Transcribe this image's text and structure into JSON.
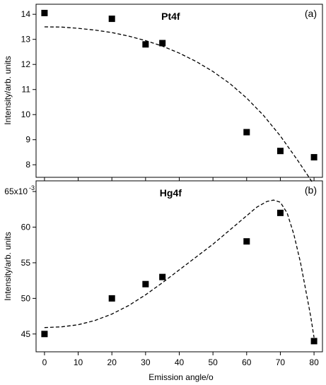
{
  "chart_data": [
    {
      "type": "scatter",
      "title": "Pt4f",
      "panel_label": "(a)",
      "xlabel": "",
      "ylabel": "Intensity/arb. units",
      "xlim": [
        -2.5,
        82.5
      ],
      "ylim": [
        7.5,
        14.4
      ],
      "yticks": [
        8,
        9,
        10,
        11,
        12,
        13,
        14
      ],
      "ytick_labels": [
        "8",
        "9",
        "10",
        "11",
        "12",
        "13",
        "14"
      ],
      "xticks": [
        0,
        10,
        20,
        30,
        40,
        50,
        60,
        70,
        80
      ],
      "show_x_tick_labels": false,
      "grid": false,
      "series": [
        {
          "kind": "points",
          "marker": "square",
          "x": [
            0,
            20,
            30,
            35,
            60,
            70,
            80
          ],
          "y": [
            14.05,
            13.82,
            12.8,
            12.85,
            9.3,
            8.55,
            8.3
          ]
        },
        {
          "kind": "line",
          "style": "dashed",
          "x": [
            0,
            5,
            10,
            15,
            20,
            25,
            30,
            35,
            40,
            45,
            50,
            55,
            60,
            65,
            70,
            75,
            78,
            79.5
          ],
          "y": [
            13.5,
            13.49,
            13.44,
            13.37,
            13.27,
            13.13,
            12.95,
            12.73,
            12.45,
            12.12,
            11.72,
            11.24,
            10.66,
            9.97,
            9.15,
            8.2,
            7.6,
            7.3
          ]
        }
      ]
    },
    {
      "type": "scatter",
      "title": "Hg4f",
      "panel_label": "(b)",
      "xlabel": "Emission angle/ο",
      "ylabel": "Intensity/arb. units",
      "xlim": [
        -2.5,
        82.5
      ],
      "ylim": [
        42.5,
        66.5
      ],
      "yticks": [
        45,
        50,
        55,
        60,
        65
      ],
      "ytick_labels": [
        "45",
        "50",
        "55",
        "60",
        "65x10"
      ],
      "ytick_exponent": "-3",
      "xticks": [
        0,
        10,
        20,
        30,
        40,
        50,
        60,
        70,
        80
      ],
      "xtick_labels": [
        "0",
        "10",
        "20",
        "30",
        "40",
        "50",
        "60",
        "70",
        "80"
      ],
      "grid": false,
      "series": [
        {
          "kind": "points",
          "marker": "square",
          "x": [
            0,
            20,
            30,
            35,
            60,
            70,
            80
          ],
          "y": [
            45,
            50,
            52,
            53,
            58,
            62,
            44
          ]
        },
        {
          "kind": "line",
          "style": "dashed",
          "x": [
            0,
            5,
            10,
            15,
            20,
            25,
            30,
            35,
            40,
            45,
            50,
            55,
            60,
            63,
            66,
            68,
            70,
            72,
            74,
            76,
            78,
            79,
            80
          ],
          "y": [
            45.9,
            46.0,
            46.3,
            46.9,
            47.8,
            49.0,
            50.5,
            52.2,
            54.0,
            55.8,
            57.6,
            59.6,
            61.6,
            62.8,
            63.6,
            63.8,
            63.5,
            62.0,
            59.0,
            55.0,
            50.0,
            47.5,
            44.5
          ]
        }
      ]
    }
  ]
}
